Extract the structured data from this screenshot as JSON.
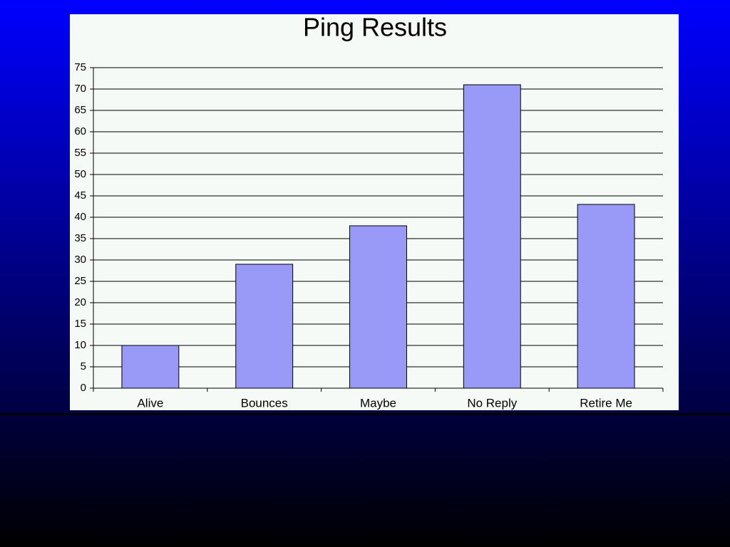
{
  "chart_data": {
    "type": "bar",
    "title": "Ping Results",
    "categories": [
      "Alive",
      "Bounces",
      "Maybe",
      "No Reply",
      "Retire Me"
    ],
    "values": [
      10,
      29,
      38,
      71,
      43
    ],
    "color": "#9999f8",
    "ylim": [
      0,
      75
    ],
    "yticks": [
      0,
      5,
      10,
      15,
      20,
      25,
      30,
      35,
      40,
      45,
      50,
      55,
      60,
      65,
      70,
      75
    ],
    "grid": true
  }
}
